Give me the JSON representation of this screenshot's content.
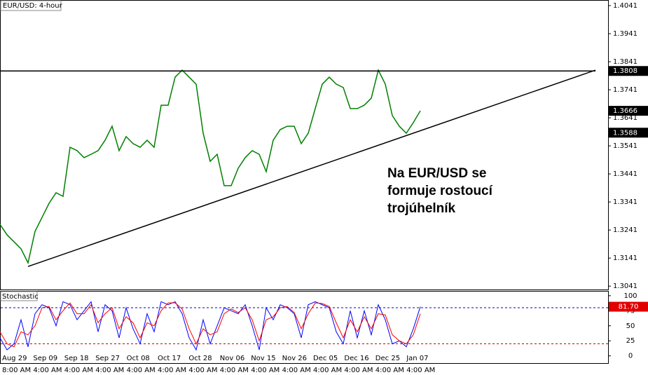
{
  "chart_data": {
    "type": "line",
    "title": "EUR/USD: 4-hour",
    "annotation": [
      "Na EUR/USD se",
      "formuje rostoucí",
      "trojúhelník"
    ],
    "ylim": [
      1.3029,
      1.4061
    ],
    "yticks": [
      1.4041,
      1.3941,
      1.3841,
      1.3741,
      1.3641,
      1.3541,
      1.3441,
      1.3341,
      1.3241,
      1.3141,
      1.3041
    ],
    "color": "#008000",
    "values": [
      1.3261,
      1.3224,
      1.3199,
      1.3174,
      1.3124,
      1.3236,
      1.3286,
      1.3336,
      1.3374,
      1.3361,
      1.3536,
      1.3524,
      1.3499,
      1.3511,
      1.3524,
      1.3561,
      1.3611,
      1.3524,
      1.3574,
      1.3549,
      1.3536,
      1.3561,
      1.3536,
      1.3686,
      1.3686,
      1.3786,
      1.3811,
      1.3786,
      1.3761,
      1.3586,
      1.3486,
      1.3511,
      1.3399,
      1.3399,
      1.3461,
      1.3499,
      1.3524,
      1.3511,
      1.3449,
      1.3561,
      1.3599,
      1.3611,
      1.3611,
      1.3549,
      1.3586,
      1.3674,
      1.3761,
      1.3786,
      1.3761,
      1.3749,
      1.3674,
      1.3674,
      1.3686,
      1.3711,
      1.3811,
      1.3761,
      1.3649,
      1.3611,
      1.3586,
      1.3624,
      1.3666
    ],
    "resistance": 1.3808,
    "trendline": [
      1.3111,
      1.3811
    ],
    "price_markers": [
      1.3808,
      1.3666,
      1.3588
    ],
    "indicator": {
      "title": "Stochastic",
      "y2lim": [
        -12,
        108
      ],
      "y2ticks": [
        100,
        75,
        50,
        25,
        0
      ],
      "levels": [
        80,
        20
      ],
      "current": 81.7,
      "current_label": "81.70",
      "series": [
        {
          "color": "#0000ff",
          "values": [
            30,
            10,
            20,
            60,
            15,
            70,
            85,
            80,
            50,
            90,
            85,
            60,
            75,
            90,
            40,
            85,
            75,
            30,
            80,
            45,
            20,
            70,
            40,
            90,
            85,
            90,
            70,
            30,
            10,
            60,
            20,
            50,
            80,
            75,
            70,
            85,
            50,
            10,
            80,
            60,
            85,
            80,
            70,
            30,
            85,
            90,
            85,
            80,
            40,
            20,
            75,
            30,
            75,
            35,
            85,
            60,
            20,
            25,
            15,
            45,
            81.7
          ]
        },
        {
          "color": "#ff0000",
          "values": [
            40,
            20,
            15,
            40,
            35,
            50,
            80,
            82,
            60,
            75,
            88,
            70,
            70,
            85,
            55,
            70,
            80,
            45,
            65,
            55,
            30,
            55,
            50,
            75,
            88,
            88,
            78,
            45,
            20,
            45,
            35,
            40,
            70,
            78,
            72,
            80,
            60,
            25,
            60,
            65,
            80,
            82,
            72,
            45,
            70,
            88,
            87,
            82,
            55,
            30,
            60,
            40,
            65,
            45,
            70,
            68,
            35,
            25,
            20,
            35,
            70
          ]
        }
      ]
    },
    "x_labels": [
      {
        "date": "Aug 29",
        "time": "8:00 AM"
      },
      {
        "date": "Sep 09",
        "time": "4:00 AM"
      },
      {
        "date": "Sep 18",
        "time": "4:00 AM"
      },
      {
        "date": "Sep 27",
        "time": "4:00 AM"
      },
      {
        "date": "Oct 08",
        "time": "4:00 AM"
      },
      {
        "date": "Oct 17",
        "time": "4:00 AM"
      },
      {
        "date": "Oct 28",
        "time": "4:00 AM"
      },
      {
        "date": "Nov 06",
        "time": "4:00 AM"
      },
      {
        "date": "Nov 15",
        "time": "4:00 AM"
      },
      {
        "date": "Nov 26",
        "time": "4:00 AM"
      },
      {
        "date": "Dec 05",
        "time": "4:00 AM"
      },
      {
        "date": "Dec 16",
        "time": "4:00 AM"
      },
      {
        "date": "Dec 25",
        "time": "4:00 AM"
      },
      {
        "date": "Jan 07",
        "time": "4:00 AM"
      }
    ]
  }
}
